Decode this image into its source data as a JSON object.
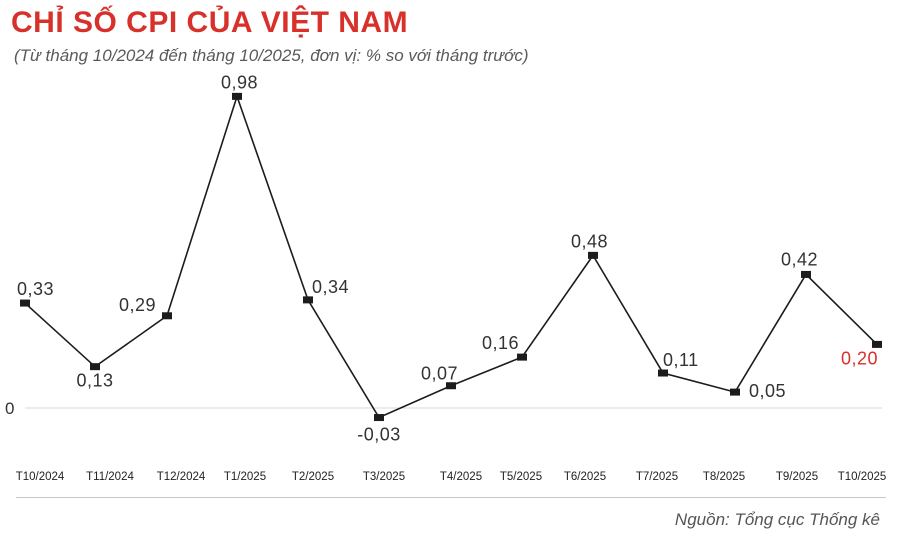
{
  "header": {
    "title": "CHỈ SỐ CPI CỦA VIỆT NAM",
    "subtitle": "(Từ tháng 10/2024 đến tháng 10/2025, đơn vị: % so với tháng trước)"
  },
  "footer": {
    "source": "Nguồn: Tổng cục Thống kê"
  },
  "colors": {
    "accent": "#d8302a",
    "line": "#1c1c1c",
    "label": "#333333",
    "zero_line": "#d9d9d9"
  },
  "chart_data": {
    "type": "line",
    "title": "CHỈ SỐ CPI CỦA VIỆT NAM",
    "subtitle": "(Từ tháng 10/2024 đến tháng 10/2025, đơn vị: % so với tháng trước)",
    "xlabel": "",
    "ylabel": "",
    "zero_tick": "0",
    "categories": [
      "T10/2024",
      "T11/2024",
      "T12/2024",
      "T1/2025",
      "T2/2025",
      "T3/2025",
      "T4/2025",
      "T5/2025",
      "T6/2025",
      "T7/2025",
      "T8/2025",
      "T9/2025",
      "T10/2025"
    ],
    "values": [
      0.33,
      0.13,
      0.29,
      0.98,
      0.34,
      -0.03,
      0.07,
      0.16,
      0.48,
      0.11,
      0.05,
      0.42,
      0.2
    ],
    "value_labels": [
      "0,33",
      "0,13",
      "0,29",
      "0,98",
      "0,34",
      "-0,03",
      "0,07",
      "0,16",
      "0,48",
      "0,11",
      "0,05",
      "0,42",
      "0,20"
    ],
    "highlight_last": true,
    "ylim": [
      -0.05,
      1.0
    ],
    "grid": false,
    "legend": "none"
  }
}
